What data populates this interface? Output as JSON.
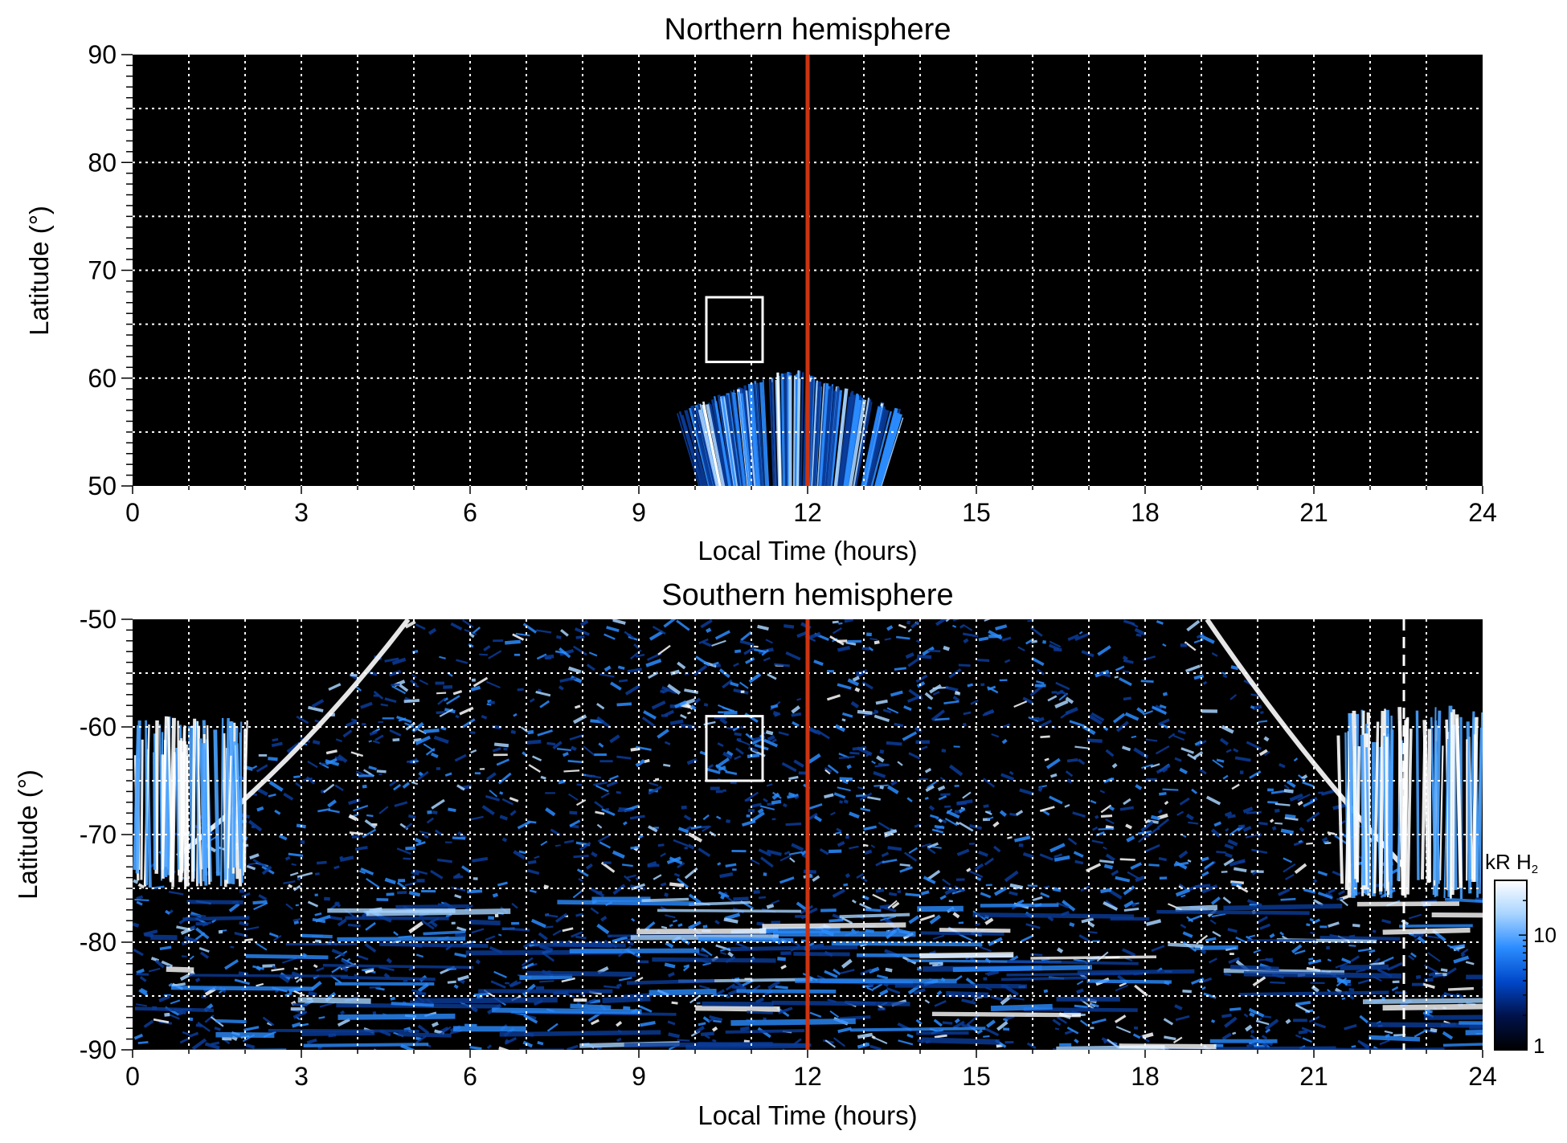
{
  "chart_data": [
    {
      "type": "heatmap",
      "title": "Northern hemisphere",
      "xlabel": "Local Time (hours)",
      "ylabel": "Latitude (°)",
      "xlim": [
        0,
        24
      ],
      "ylim": [
        50,
        90
      ],
      "xticks": [
        "0",
        "3",
        "6",
        "9",
        "12",
        "15",
        "18",
        "21",
        "24"
      ],
      "yticks": [
        "50",
        "60",
        "70",
        "80",
        "90"
      ],
      "grid": true,
      "vline_local_time": 12,
      "vline_color": "#cc3311",
      "highlight_box": {
        "lt": [
          10.2,
          11.2
        ],
        "lat": [
          61.5,
          67.5
        ]
      },
      "emission_region": {
        "lt": [
          9.7,
          13.7
        ],
        "lat_min": 50,
        "lat_max": 61
      }
    },
    {
      "type": "heatmap",
      "title": "Southern hemisphere",
      "xlabel": "Local Time (hours)",
      "ylabel": "Latitude (°)",
      "xlim": [
        0,
        24
      ],
      "ylim": [
        -90,
        -50
      ],
      "xticks": [
        "0",
        "3",
        "6",
        "9",
        "12",
        "15",
        "18",
        "21",
        "24"
      ],
      "yticks": [
        "-90",
        "-80",
        "-70",
        "-60",
        "-50"
      ],
      "grid": true,
      "vline_local_time": 12,
      "vline_color": "#cc3311",
      "dashed_line_local_time": 22.6,
      "highlight_box": {
        "lt": [
          10.2,
          11.2
        ],
        "lat": [
          -65,
          -59
        ]
      },
      "colorbar": {
        "label_main": "kR H",
        "label_sub": "2",
        "scale": "log",
        "range": [
          1,
          30
        ],
        "ticks": [
          "1",
          "10"
        ],
        "colors": [
          "#000000",
          "#00124a",
          "#0047c8",
          "#2a8cff",
          "#a8d4ff",
          "#ffffff"
        ]
      }
    }
  ],
  "colors": {
    "background": "#000000",
    "emission_low": "#0a3c9a",
    "emission_mid": "#2a8cff",
    "emission_high": "#ffffff"
  }
}
